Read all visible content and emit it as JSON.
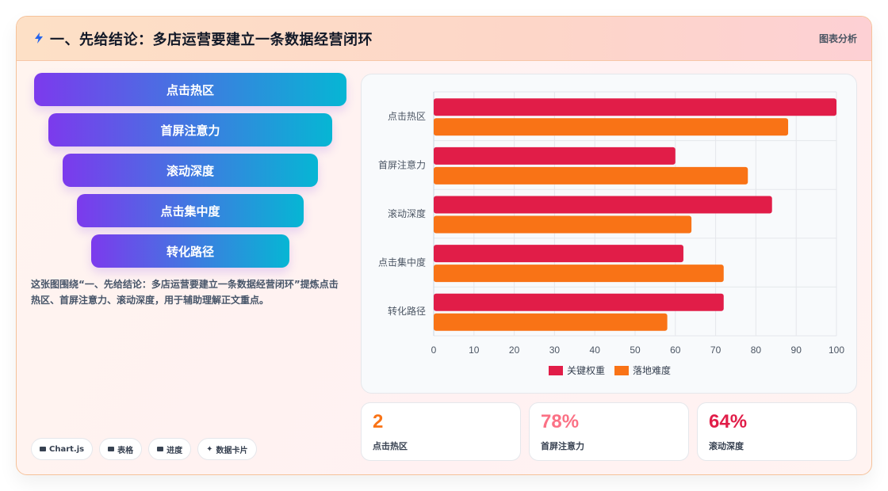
{
  "header": {
    "icon": "lightning-icon",
    "title": "一、先给结论：多店运营要建立一条数据经营闭环",
    "link_label": "图表分析"
  },
  "funnel": {
    "items": [
      {
        "label": "点击热区"
      },
      {
        "label": "首屏注意力"
      },
      {
        "label": "滚动深度"
      },
      {
        "label": "点击集中度"
      },
      {
        "label": "转化路径"
      }
    ]
  },
  "description": "这张图围绕“一、先给结论：多店运营要建立一条数据经营闭环”提炼点击热区、首屏注意力、滚动深度，用于辅助理解正文重点。",
  "chips": [
    {
      "icon": "chart-icon",
      "label": "Chart.js"
    },
    {
      "icon": "table-icon",
      "label": "表格"
    },
    {
      "icon": "progress-icon",
      "label": "进度"
    },
    {
      "icon": "sparkle-icon",
      "label": "数据卡片"
    }
  ],
  "chart_data": {
    "type": "bar",
    "orientation": "horizontal",
    "categories": [
      "点击热区",
      "首屏注意力",
      "滚动深度",
      "点击集中度",
      "转化路径"
    ],
    "series": [
      {
        "name": "关键权重",
        "color": "#e11d48",
        "values": [
          100,
          60,
          84,
          62,
          72
        ]
      },
      {
        "name": "落地难度",
        "color": "#f97316",
        "values": [
          88,
          78,
          64,
          72,
          58
        ]
      }
    ],
    "xlim": [
      0,
      100
    ],
    "xticks": [
      "0",
      "10",
      "20",
      "30",
      "40",
      "50",
      "60",
      "70",
      "80",
      "90",
      "100"
    ],
    "grid": true,
    "legend": "bottom"
  },
  "stats": [
    {
      "value": "2",
      "label": "点击热区",
      "color": "#f97316"
    },
    {
      "value": "78%",
      "label": "首屏注意力",
      "color": "#fb7185"
    },
    {
      "value": "64%",
      "label": "滚动深度",
      "color": "#e11d48"
    }
  ]
}
